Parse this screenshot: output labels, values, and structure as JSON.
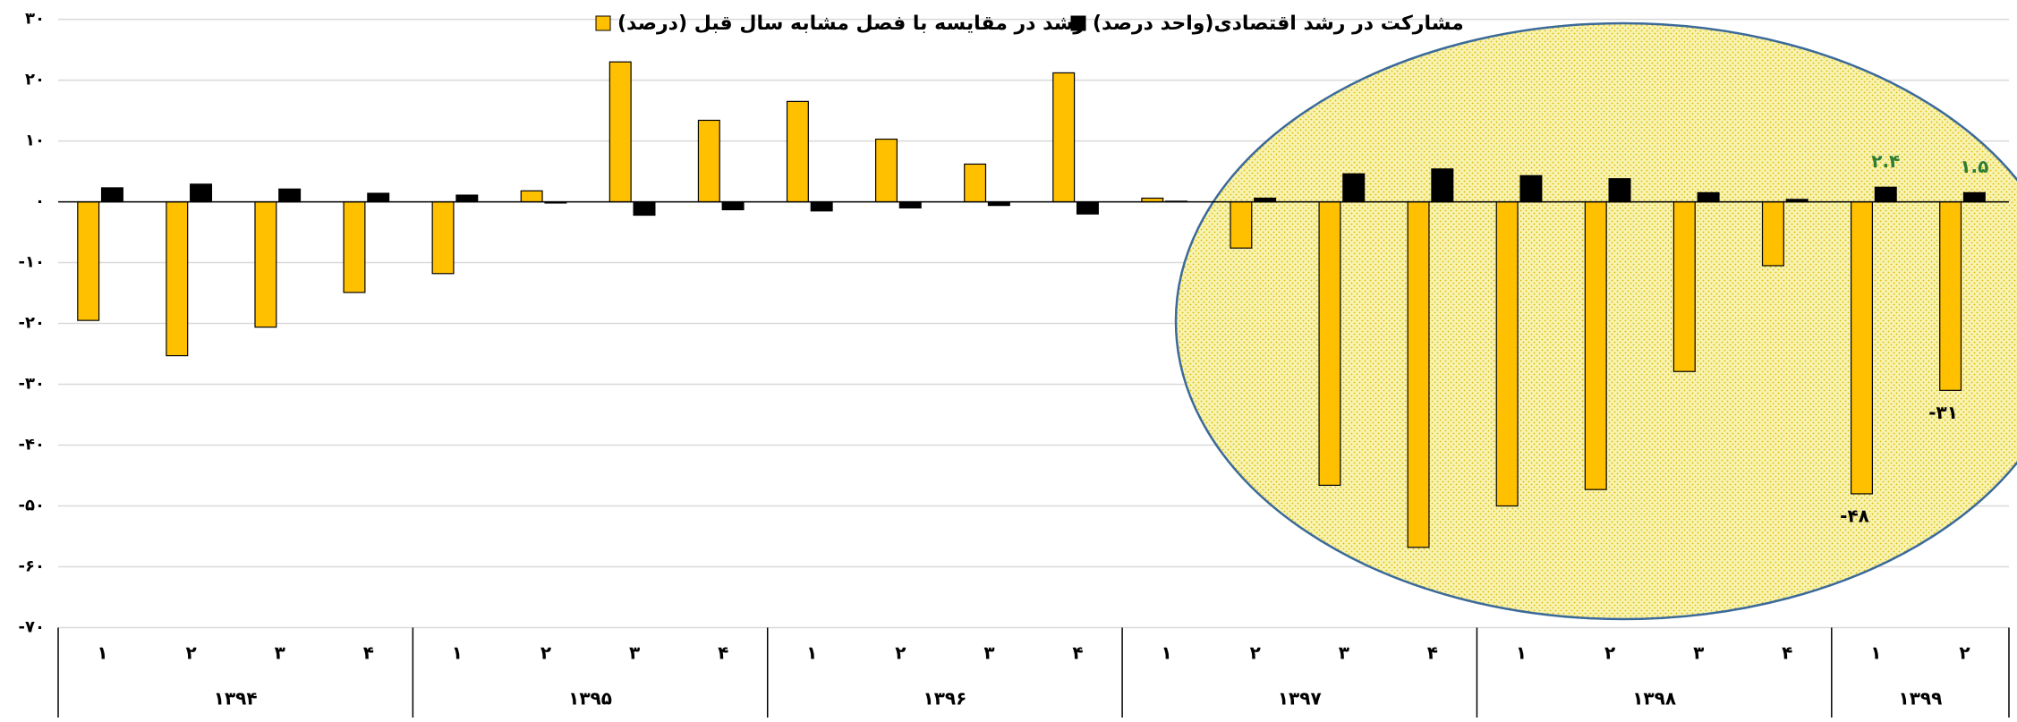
{
  "chart_data": {
    "type": "bar",
    "category_groups": [
      {
        "name": "۱۳۹۴",
        "categories": [
          "۱",
          "۲",
          "۳",
          "۴"
        ]
      },
      {
        "name": "۱۳۹۵",
        "categories": [
          "۱",
          "۲",
          "۳",
          "۴"
        ]
      },
      {
        "name": "۱۳۹۶",
        "categories": [
          "۱",
          "۲",
          "۳",
          "۴"
        ]
      },
      {
        "name": "۱۳۹۷",
        "categories": [
          "۱",
          "۲",
          "۳",
          "۴"
        ]
      },
      {
        "name": "۱۳۹۸",
        "categories": [
          "۱",
          "۲",
          "۳",
          "۴"
        ]
      },
      {
        "name": "۱۳۹۹",
        "categories": [
          "۱",
          "۲"
        ]
      }
    ],
    "series": [
      {
        "name": "رشد در مقایسه با فصل مشابه سال قبل (درصد)",
        "color": "#ffc000",
        "label_color": "#000000",
        "values": [
          -19.5,
          -25.3,
          -20.6,
          -14.9,
          -11.8,
          1.8,
          23,
          13.4,
          16.5,
          10.3,
          6.2,
          21.2,
          0.6,
          -7.6,
          -46.6,
          -56.8,
          -50,
          -47.3,
          -27.9,
          -10.5,
          -48,
          -31
        ],
        "value_labels": [
          null,
          null,
          null,
          null,
          null,
          null,
          null,
          null,
          null,
          null,
          null,
          null,
          null,
          null,
          null,
          null,
          null,
          null,
          null,
          null,
          "-۴۸",
          "-۳۱"
        ]
      },
      {
        "name": "مشارکت در رشد اقتصادی(واحد درصد)",
        "color": "#000000",
        "label_color": "#2e7d32",
        "values": [
          2.3,
          2.9,
          2.1,
          1.4,
          1.1,
          -0.2,
          -2.2,
          -1.3,
          -1.5,
          -1.0,
          -0.6,
          -2.0,
          0.1,
          0.6,
          4.6,
          5.4,
          4.3,
          3.8,
          1.5,
          0.4,
          2.4,
          1.5
        ],
        "value_labels": [
          null,
          null,
          null,
          null,
          null,
          null,
          null,
          null,
          null,
          null,
          null,
          null,
          null,
          null,
          null,
          null,
          null,
          null,
          null,
          null,
          "۲.۴",
          "۱.۵"
        ]
      }
    ],
    "ylim": [
      -70,
      30
    ],
    "yticks": [
      {
        "value": -70,
        "label": "-۷۰"
      },
      {
        "value": -60,
        "label": "-۶۰"
      },
      {
        "value": -50,
        "label": "-۵۰"
      },
      {
        "value": -40,
        "label": "-۴۰"
      },
      {
        "value": -30,
        "label": "-۳۰"
      },
      {
        "value": -20,
        "label": "-۲۰"
      },
      {
        "value": -10,
        "label": "-۱۰"
      },
      {
        "value": 0,
        "label": "۰"
      },
      {
        "value": 10,
        "label": "۱۰"
      },
      {
        "value": 20,
        "label": "۲۰"
      },
      {
        "value": 30,
        "label": "۳۰"
      }
    ],
    "grid": true
  }
}
